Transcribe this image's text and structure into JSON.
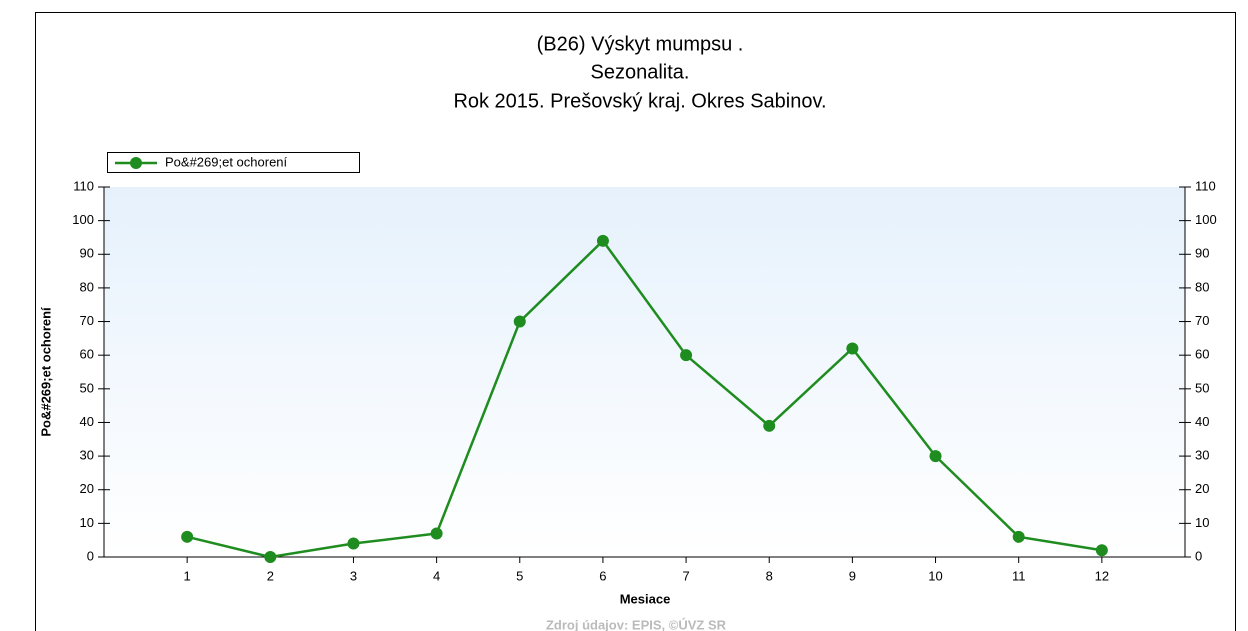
{
  "chart_data": {
    "type": "line",
    "title": [
      "(B26) Výskyt mumpsu .",
      "Sezonalita.",
      "Rok 2015. Prešovský kraj. Okres Sabinov."
    ],
    "x": [
      1,
      2,
      3,
      4,
      5,
      6,
      7,
      8,
      9,
      10,
      11,
      12
    ],
    "series": [
      {
        "name": "Po&#269;et ochorení",
        "color": "#1e8c1e",
        "values": [
          6,
          0,
          4,
          7,
          70,
          94,
          60,
          39,
          62,
          30,
          6,
          2
        ]
      }
    ],
    "xlim": [
      0,
      13
    ],
    "xticks": [
      1,
      2,
      3,
      4,
      5,
      6,
      7,
      8,
      9,
      10,
      11,
      12
    ],
    "ylim": [
      0,
      110
    ],
    "yticks": [
      0,
      10,
      20,
      30,
      40,
      50,
      60,
      70,
      80,
      90,
      100,
      110
    ],
    "y2lim": [
      0,
      110
    ],
    "y2ticks": [
      0,
      10,
      20,
      30,
      40,
      50,
      60,
      70,
      80,
      90,
      100,
      110
    ],
    "x_label": "Mesiace",
    "y_label": "Po&#269;et ochorení",
    "source": "Zdroj údajov: EPIS, ©ÚVZ SR",
    "legend": "top-left"
  }
}
